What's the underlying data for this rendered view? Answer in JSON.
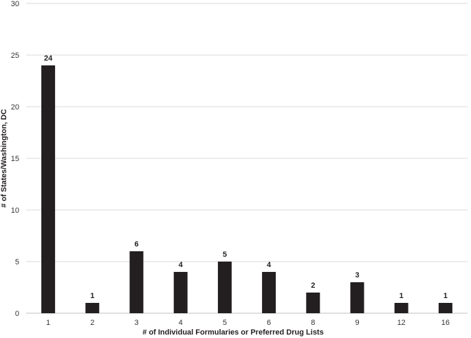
{
  "chart_data": {
    "type": "bar",
    "title": "",
    "xlabel": "# of Individual Formularies or Preferred Drug Lists",
    "ylabel": "# of States/Washington, DC",
    "categories": [
      "1",
      "2",
      "3",
      "4",
      "5",
      "6",
      "8",
      "9",
      "12",
      "16"
    ],
    "values": [
      24,
      1,
      6,
      4,
      5,
      4,
      2,
      3,
      1,
      1
    ],
    "ylim": [
      0,
      30
    ],
    "yticks": [
      0,
      5,
      10,
      15,
      20,
      25,
      30
    ],
    "grid": true,
    "legend": "none",
    "bar_color": "#231f20",
    "grid_color": "#d9d9d9"
  }
}
